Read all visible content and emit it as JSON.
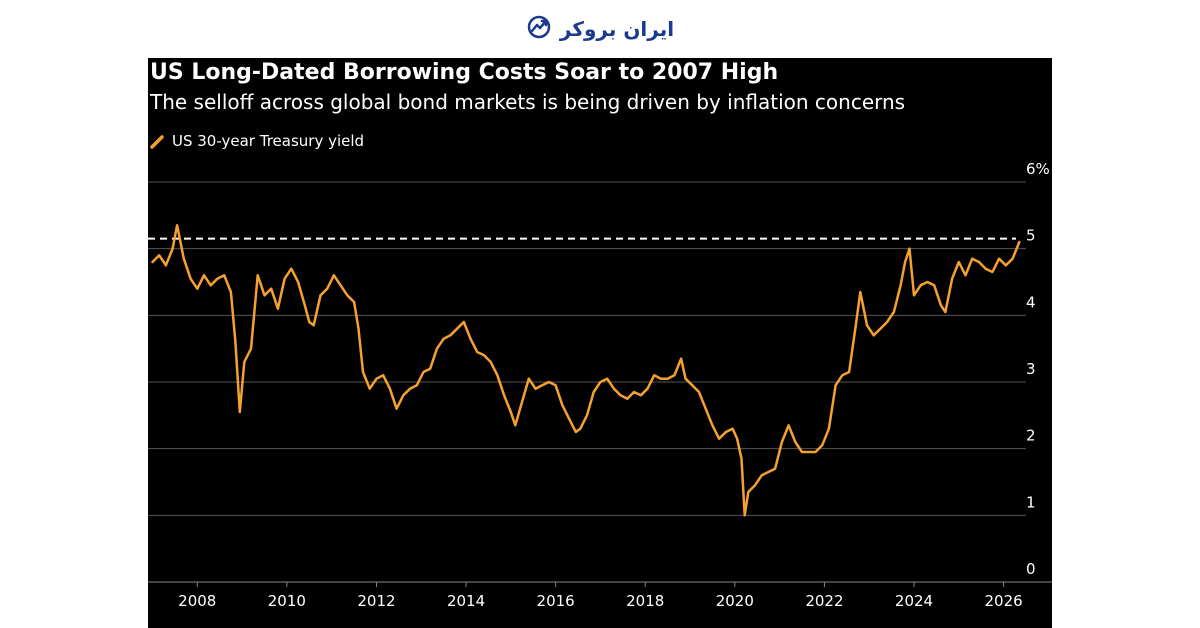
{
  "brand": {
    "name": "ایران بروکر",
    "icon": "trend-chart-icon",
    "color": "#1b3a8f"
  },
  "chart_data": {
    "type": "line",
    "title": "US Long-Dated Borrowing Costs Soar to 2007 High",
    "subtitle": "The selloff across global bond markets is being driven by inflation concerns",
    "xlabel": "",
    "ylabel": "",
    "xlim": [
      2006.9,
      2026.5
    ],
    "ylim": [
      0,
      6
    ],
    "y_ticks": [
      0,
      1,
      2,
      3,
      4,
      5,
      6
    ],
    "y_tick_labels": [
      "0",
      "1",
      "2",
      "3",
      "4",
      "5",
      "6%"
    ],
    "x_ticks": [
      2008,
      2010,
      2012,
      2014,
      2016,
      2018,
      2020,
      2022,
      2024,
      2026
    ],
    "x_tick_labels": [
      "2008",
      "2010",
      "2012",
      "2014",
      "2016",
      "2018",
      "2020",
      "2022",
      "2024",
      "2026"
    ],
    "grid": "horizontal",
    "legend_position": "top-left",
    "reference_line": {
      "value": 5.15,
      "style": "dashed",
      "color": "#ffffff"
    },
    "series": [
      {
        "name": "US 30-year Treasury yield",
        "color": "#f5a030",
        "x": [
          2007.0,
          2007.15,
          2007.3,
          2007.45,
          2007.55,
          2007.7,
          2007.85,
          2008.0,
          2008.15,
          2008.3,
          2008.45,
          2008.6,
          2008.75,
          2008.85,
          2008.95,
          2009.05,
          2009.2,
          2009.35,
          2009.5,
          2009.65,
          2009.8,
          2009.95,
          2010.1,
          2010.25,
          2010.4,
          2010.5,
          2010.6,
          2010.75,
          2010.9,
          2011.05,
          2011.2,
          2011.35,
          2011.5,
          2011.6,
          2011.7,
          2011.85,
          2012.0,
          2012.15,
          2012.3,
          2012.45,
          2012.6,
          2012.75,
          2012.9,
          2013.05,
          2013.2,
          2013.35,
          2013.5,
          2013.65,
          2013.8,
          2013.95,
          2014.1,
          2014.25,
          2014.4,
          2014.55,
          2014.7,
          2014.85,
          2015.0,
          2015.1,
          2015.25,
          2015.4,
          2015.55,
          2015.7,
          2015.85,
          2016.0,
          2016.15,
          2016.3,
          2016.45,
          2016.55,
          2016.7,
          2016.85,
          2017.0,
          2017.15,
          2017.3,
          2017.45,
          2017.6,
          2017.75,
          2017.9,
          2018.05,
          2018.2,
          2018.35,
          2018.5,
          2018.65,
          2018.8,
          2018.9,
          2019.05,
          2019.2,
          2019.35,
          2019.5,
          2019.65,
          2019.8,
          2019.95,
          2020.05,
          2020.15,
          2020.22,
          2020.3,
          2020.45,
          2020.6,
          2020.75,
          2020.9,
          2021.05,
          2021.2,
          2021.35,
          2021.5,
          2021.65,
          2021.8,
          2021.95,
          2022.1,
          2022.25,
          2022.4,
          2022.55,
          2022.7,
          2022.8,
          2022.95,
          2023.1,
          2023.25,
          2023.4,
          2023.55,
          2023.7,
          2023.8,
          2023.9,
          2024.0,
          2024.15,
          2024.3,
          2024.45,
          2024.6,
          2024.7,
          2024.85,
          2025.0,
          2025.15,
          2025.3,
          2025.45,
          2025.6,
          2025.75,
          2025.9,
          2026.05,
          2026.2,
          2026.35
        ],
        "values": [
          4.8,
          4.9,
          4.75,
          5.0,
          5.35,
          4.85,
          4.55,
          4.4,
          4.6,
          4.45,
          4.55,
          4.6,
          4.35,
          3.6,
          2.55,
          3.3,
          3.5,
          4.6,
          4.3,
          4.4,
          4.1,
          4.55,
          4.7,
          4.5,
          4.15,
          3.9,
          3.85,
          4.3,
          4.4,
          4.6,
          4.45,
          4.3,
          4.2,
          3.8,
          3.15,
          2.9,
          3.05,
          3.1,
          2.9,
          2.6,
          2.8,
          2.9,
          2.95,
          3.15,
          3.2,
          3.5,
          3.65,
          3.7,
          3.8,
          3.9,
          3.65,
          3.45,
          3.4,
          3.3,
          3.1,
          2.8,
          2.55,
          2.35,
          2.7,
          3.05,
          2.9,
          2.95,
          3.0,
          2.95,
          2.65,
          2.45,
          2.25,
          2.3,
          2.5,
          2.85,
          3.0,
          3.05,
          2.9,
          2.8,
          2.75,
          2.85,
          2.8,
          2.9,
          3.1,
          3.05,
          3.05,
          3.1,
          3.35,
          3.05,
          2.95,
          2.85,
          2.6,
          2.35,
          2.15,
          2.25,
          2.3,
          2.15,
          1.85,
          1.0,
          1.35,
          1.45,
          1.6,
          1.65,
          1.7,
          2.1,
          2.35,
          2.1,
          1.95,
          1.95,
          1.95,
          2.05,
          2.3,
          2.95,
          3.1,
          3.15,
          3.85,
          4.35,
          3.85,
          3.7,
          3.8,
          3.9,
          4.05,
          4.45,
          4.8,
          5.0,
          4.3,
          4.45,
          4.5,
          4.45,
          4.15,
          4.05,
          4.55,
          4.8,
          4.6,
          4.85,
          4.8,
          4.7,
          4.65,
          4.85,
          4.75,
          4.85,
          5.1
        ]
      }
    ]
  }
}
